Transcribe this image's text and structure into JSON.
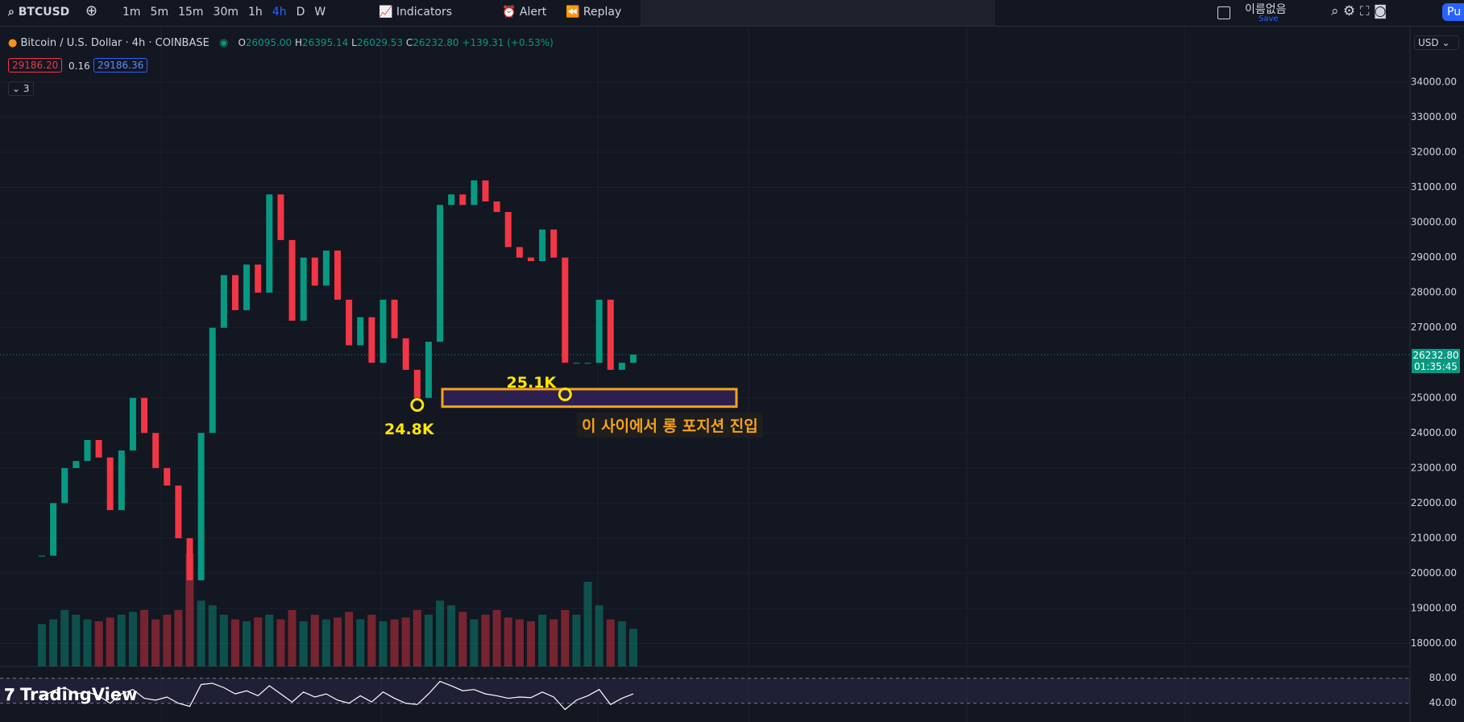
{
  "toolbar": {
    "symbol": "BTCUSD",
    "intervals": [
      "1m",
      "5m",
      "15m",
      "30m",
      "1h",
      "4h",
      "D",
      "W"
    ],
    "active_interval": 5,
    "indicators": "Indicators",
    "alert": "Alert",
    "replay": "Replay",
    "layout_name": "이름없음",
    "save": "Save",
    "publish": "Pu"
  },
  "legend": {
    "title": "Bitcoin / U.S. Dollar · 4h · COINBASE",
    "open_label": "O",
    "open": "26095.00",
    "high_label": "H",
    "high": "26395.14",
    "low_label": "L",
    "low": "26029.53",
    "close_label": "C",
    "close": "26232.80",
    "change": "+139.31 (+0.53%)",
    "sell": "29186.20",
    "spread": "0.16",
    "buy": "29186.36",
    "collapsed_count": "3"
  },
  "chart": {
    "currency": "USD",
    "ylim": [
      17345,
      35470
    ],
    "yticks": [
      {
        "value": 34000,
        "label": "34000.00"
      },
      {
        "value": 33000,
        "label": "33000.00"
      },
      {
        "value": 32000,
        "label": "32000.00"
      },
      {
        "value": 31000,
        "label": "31000.00"
      },
      {
        "value": 30000,
        "label": "30000.00"
      },
      {
        "value": 29000,
        "label": "29000.00"
      },
      {
        "value": 28000,
        "label": "28000.00"
      },
      {
        "value": 27000,
        "label": "27000.00"
      },
      {
        "value": 25000,
        "label": "25000.00"
      },
      {
        "value": 24000,
        "label": "24000.00"
      },
      {
        "value": 23000,
        "label": "23000.00"
      },
      {
        "value": 22000,
        "label": "22000.00"
      },
      {
        "value": 21000,
        "label": "21000.00"
      },
      {
        "value": 20000,
        "label": "20000.00"
      },
      {
        "value": 19000,
        "label": "19000.00"
      },
      {
        "value": 18000,
        "label": "18000.00"
      }
    ],
    "last_price": {
      "value": 26232.8,
      "label": "26232.80"
    },
    "countdown": "01:35:45",
    "up_color": "#089981",
    "down_color": "#f23645",
    "closes": [
      20500,
      22000,
      23000,
      23200,
      23800,
      23300,
      21800,
      23500,
      25000,
      24000,
      23000,
      22500,
      21000,
      19800,
      24000,
      27000,
      28500,
      27500,
      28800,
      28000,
      30800,
      29500,
      27200,
      29000,
      28200,
      29200,
      27800,
      26500,
      27300,
      26000,
      27800,
      26700,
      25800,
      25000,
      26600,
      30500,
      30800,
      30500,
      31200,
      30600,
      30300,
      29300,
      29000,
      28900,
      29800,
      29000,
      26000,
      26000,
      26000,
      27800,
      25800,
      26000,
      26232.8
    ],
    "volumes": [
      45,
      50,
      60,
      55,
      50,
      48,
      52,
      55,
      58,
      60,
      50,
      55,
      60,
      120,
      70,
      65,
      55,
      50,
      48,
      52,
      55,
      50,
      60,
      48,
      55,
      50,
      52,
      58,
      50,
      55,
      48,
      50,
      52,
      60,
      55,
      70,
      65,
      58,
      50,
      55,
      60,
      52,
      50,
      48,
      55,
      50,
      60,
      55,
      90,
      65,
      50,
      48,
      40
    ],
    "rsi": [
      50,
      60,
      65,
      55,
      58,
      52,
      40,
      55,
      62,
      48,
      45,
      50,
      40,
      35,
      70,
      72,
      65,
      55,
      60,
      52,
      68,
      55,
      42,
      58,
      50,
      55,
      45,
      40,
      52,
      42,
      58,
      48,
      40,
      38,
      55,
      75,
      68,
      60,
      62,
      55,
      52,
      48,
      50,
      49,
      58,
      50,
      30,
      45,
      52,
      62,
      38,
      48,
      55
    ],
    "rsi_ylim": [
      10,
      99
    ],
    "rsi_yticks": [
      {
        "value": 80,
        "label": "80.00"
      },
      {
        "value": 40,
        "label": "40.00"
      }
    ]
  },
  "annotations": {
    "lows": [
      {
        "label": "24.8K",
        "value": 24800,
        "candle": 33
      },
      {
        "label": "25.1K",
        "value": 25100,
        "candle": 46
      }
    ],
    "zone": {
      "top": 25250,
      "bottom": 24750,
      "label": "이 사이에서 롱 포지션 진입"
    }
  },
  "branding": "TradingView"
}
